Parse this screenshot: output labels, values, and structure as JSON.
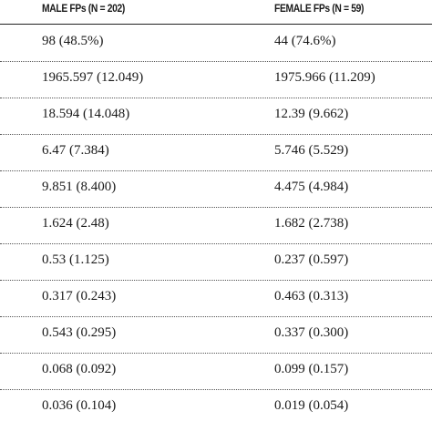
{
  "table": {
    "headers": [
      "MALE FPs (N = 202)",
      "FEMALE FPs (N = 59)"
    ],
    "rows": [
      [
        "98 (48.5%)",
        "44 (74.6%)"
      ],
      [
        "1965.597 (12.049)",
        "1975.966 (11.209)"
      ],
      [
        "18.594 (14.048)",
        "12.39 (9.662)"
      ],
      [
        "6.47 (7.384)",
        "5.746 (5.529)"
      ],
      [
        "9.851 (8.400)",
        "4.475 (4.984)"
      ],
      [
        "1.624 (2.48)",
        "1.682 (2.738)"
      ],
      [
        "0.53 (1.125)",
        "0.237 (0.597)"
      ],
      [
        "0.317 (0.243)",
        "0.463 (0.313)"
      ],
      [
        "0.543 (0.295)",
        "0.337 (0.300)"
      ],
      [
        "0.068 (0.092)",
        "0.099 (0.157)"
      ],
      [
        "0.036 (0.104)",
        "0.019 (0.054)"
      ]
    ]
  }
}
